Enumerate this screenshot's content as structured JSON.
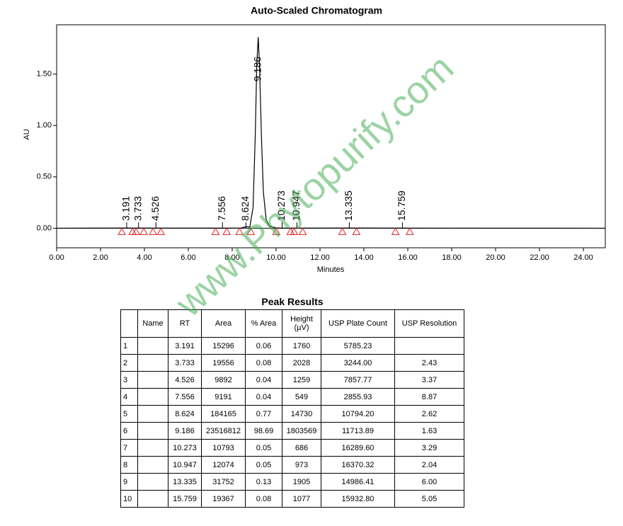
{
  "chart_data": {
    "type": "line",
    "title": "Auto-Scaled Chromatogram",
    "x_label": "Minutes",
    "y_label": "AU",
    "xlim": [
      0,
      25
    ],
    "ylim": [
      -0.19,
      1.98
    ],
    "xticks": [
      {
        "value": 0,
        "label": "0.00"
      },
      {
        "value": 2,
        "label": "2.00"
      },
      {
        "value": 4,
        "label": "4.00"
      },
      {
        "value": 6,
        "label": "6.00"
      },
      {
        "value": 8,
        "label": "8.00"
      },
      {
        "value": 10,
        "label": "10.00"
      },
      {
        "value": 12,
        "label": "12.00"
      },
      {
        "value": 14,
        "label": "14.00"
      },
      {
        "value": 16,
        "label": "16.00"
      },
      {
        "value": 18,
        "label": "18.00"
      },
      {
        "value": 20,
        "label": "20.00"
      },
      {
        "value": 22,
        "label": "22.00"
      },
      {
        "value": 24,
        "label": "24.00"
      }
    ],
    "yticks": [
      {
        "value": 0,
        "label": "0.00"
      },
      {
        "value": 0.5,
        "label": "0.50"
      },
      {
        "value": 1,
        "label": "1.00"
      },
      {
        "value": 1.5,
        "label": "1.50"
      }
    ],
    "color": "#000000",
    "x": [
      0,
      3.191,
      3.733,
      4.526,
      7.556,
      8.4,
      8.624,
      8.8,
      8.95,
      9.05,
      9.12,
      9.186,
      9.25,
      9.33,
      9.42,
      9.55,
      9.7,
      10.0,
      10.273,
      10.947,
      13.335,
      15.759,
      25
    ],
    "y": [
      0,
      0.002,
      0.002,
      0.001,
      0.001,
      0.002,
      0.015,
      0.012,
      0.2,
      0.9,
      1.6,
      1.86,
      1.55,
      0.9,
      0.35,
      0.08,
      0.02,
      0.003,
      0.001,
      0.001,
      0.002,
      0.001,
      0
    ],
    "peaks": [
      3.191,
      3.733,
      4.526,
      7.556,
      8.624,
      9.186,
      10.273,
      10.947,
      13.335,
      15.759
    ],
    "peak_marker_color": "#e02020",
    "integration_marks_x": [
      2.97,
      3.46,
      3.62,
      3.97,
      4.39,
      4.75,
      7.24,
      7.75,
      8.33,
      8.85,
      10.01,
      10.66,
      10.82,
      11.21,
      13.02,
      13.66,
      15.44,
      16.09
    ]
  },
  "watermark": "www.Phytopurify.com",
  "table": {
    "title": "Peak Results",
    "header": [
      null,
      "Name",
      "RT",
      "Area",
      "% Area",
      "Height (µV)",
      "USP Plate Count",
      "USP Resolution"
    ],
    "rows": [
      [
        "1",
        null,
        "3.191",
        "15296",
        "0.06",
        "1760",
        "5785.23",
        null
      ],
      [
        "2",
        null,
        "3.733",
        "19556",
        "0.08",
        "2028",
        "3244.00",
        "2.43"
      ],
      [
        "3",
        null,
        "4.526",
        "9892",
        "0.04",
        "1259",
        "7857.77",
        "3.37"
      ],
      [
        "4",
        null,
        "7.556",
        "9191",
        "0.04",
        "549",
        "2855.93",
        "8.87"
      ],
      [
        "5",
        null,
        "8.624",
        "184165",
        "0.77",
        "14730",
        "10794.20",
        "2.62"
      ],
      [
        "6",
        null,
        "9.186",
        "23516812",
        "98.69",
        "1803569",
        "11713.89",
        "1.63"
      ],
      [
        "7",
        null,
        "10.273",
        "10793",
        "0.05",
        "686",
        "16289.60",
        "3.29"
      ],
      [
        "8",
        null,
        "10.947",
        "12074",
        "0.05",
        "973",
        "16370.32",
        "2.04"
      ],
      [
        "9",
        null,
        "13.335",
        "31752",
        "0.13",
        "1905",
        "14986.41",
        "6.00"
      ],
      [
        "10",
        null,
        "15.759",
        "19367",
        "0.08",
        "1077",
        "15932.80",
        "5.05"
      ]
    ]
  }
}
